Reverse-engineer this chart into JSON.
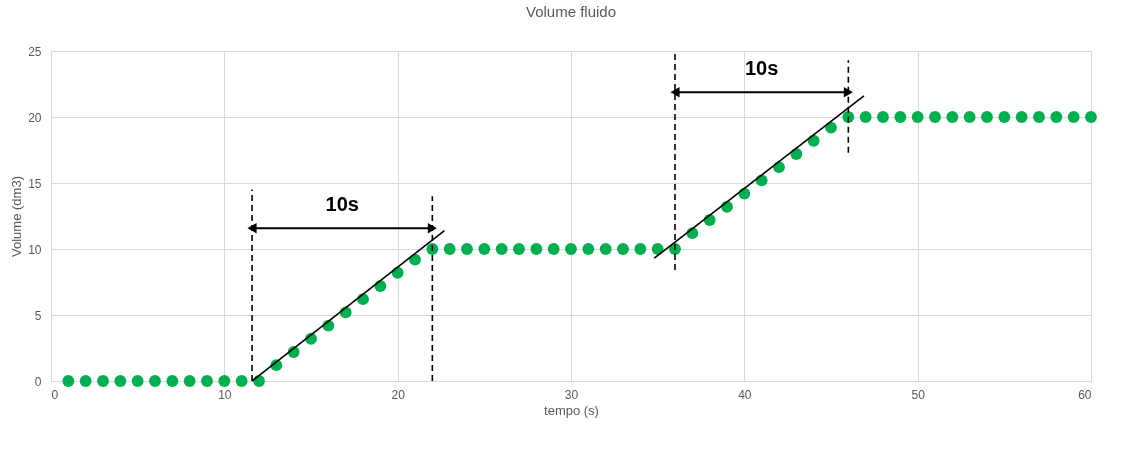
{
  "chart_data": {
    "type": "scatter",
    "title": "Volume fluido",
    "xlabel": "tempo (s)",
    "ylabel": "Volume (dm3)",
    "xlim": [
      0,
      60
    ],
    "xticks": [
      0,
      10,
      20,
      30,
      40,
      50,
      60
    ],
    "ylim": [
      0,
      25
    ],
    "yticks": [
      0,
      5,
      10,
      15,
      20,
      25
    ],
    "grid": true,
    "series": [
      {
        "marker": "circle",
        "color": "#00b050",
        "x": [
          1,
          2,
          3,
          4,
          5,
          6,
          7,
          8,
          9,
          10,
          11,
          12,
          13,
          14,
          15,
          16,
          17,
          18,
          19,
          20,
          21,
          22,
          23,
          24,
          25,
          26,
          27,
          28,
          29,
          30,
          31,
          32,
          33,
          34,
          35,
          36,
          37,
          38,
          39,
          40,
          41,
          42,
          43,
          44,
          45,
          46,
          47,
          48,
          49,
          50,
          51,
          52,
          53,
          54,
          55,
          56,
          57,
          58,
          59,
          60
        ],
        "values": [
          0,
          0,
          0,
          0,
          0,
          0,
          0,
          0,
          0,
          0,
          0,
          0,
          1.2,
          2.2,
          3.2,
          4.2,
          5.2,
          6.2,
          7.2,
          8.2,
          9.2,
          10,
          10,
          10,
          10,
          10,
          10,
          10,
          10,
          10,
          10,
          10,
          10,
          10,
          10,
          10,
          11.2,
          12.2,
          13.2,
          14.2,
          15.2,
          16.2,
          17.2,
          18.2,
          19.2,
          20,
          20,
          20,
          20,
          20,
          20,
          20,
          20,
          20,
          20,
          20,
          20,
          20,
          20,
          20
        ]
      },
      {
        "type": "line",
        "color": "#000000",
        "line_style": "solid",
        "x": [
          11.6,
          22.7
        ],
        "values": [
          0,
          11.4
        ]
      },
      {
        "type": "line",
        "color": "#000000",
        "line_style": "solid",
        "x": [
          34.8,
          46.9
        ],
        "values": [
          9.3,
          21.6
        ]
      },
      {
        "type": "line",
        "color": "#000000",
        "line_style": "dashed",
        "x": [
          11.6,
          11.6
        ],
        "values": [
          0,
          14.5
        ]
      },
      {
        "type": "line",
        "color": "#000000",
        "line_style": "dashed",
        "x": [
          22,
          22
        ],
        "values": [
          0,
          14
        ]
      },
      {
        "type": "line",
        "color": "#000000",
        "line_style": "dashed",
        "x": [
          36,
          36
        ],
        "values": [
          8.4,
          25
        ]
      },
      {
        "type": "line",
        "color": "#000000",
        "line_style": "dashed",
        "x": [
          46,
          46
        ],
        "values": [
          17.3,
          24.3
        ]
      }
    ],
    "annotations": [
      "10s",
      "10s"
    ]
  }
}
